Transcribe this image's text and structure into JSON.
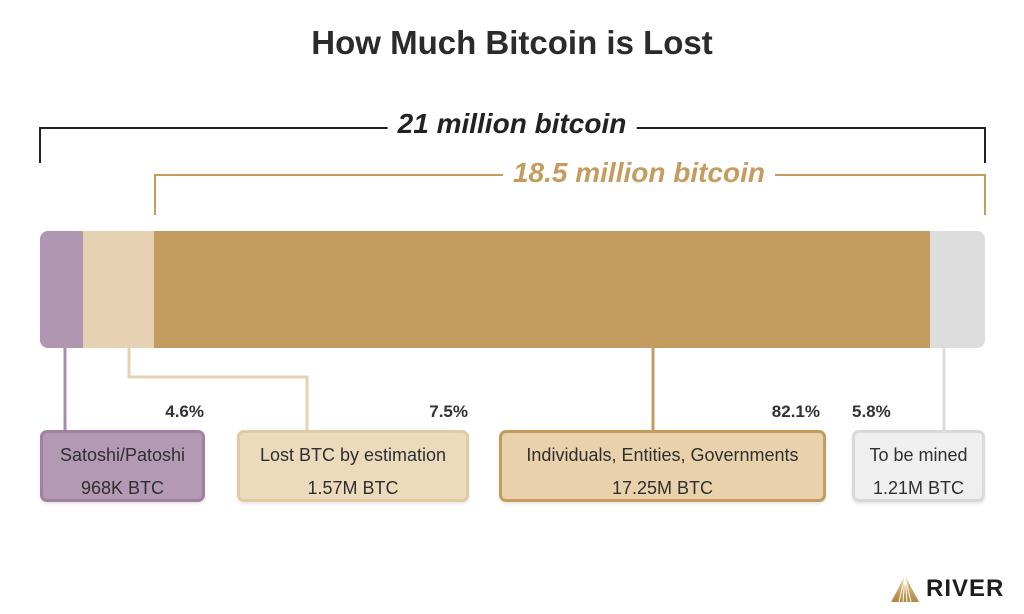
{
  "chart_data": {
    "type": "bar",
    "orientation": "horizontal-stacked",
    "title": "How Much Bitcoin is Lost",
    "brackets": [
      {
        "label": "21 million bitcoin",
        "color": "#222222"
      },
      {
        "label": "18.5 million bitcoin",
        "color": "#c49c60"
      }
    ],
    "series": [
      {
        "name": "Satoshi/Patoshi",
        "amount": "968K BTC",
        "percent_label": "4.6%",
        "value": 4.6,
        "color": "#b096b0"
      },
      {
        "name": "Lost BTC by estimation",
        "amount": "1.57M BTC",
        "percent_label": "7.5%",
        "value": 7.5,
        "color": "#e6d2b2"
      },
      {
        "name": "Individuals, Entities, Governments",
        "amount": "17.25M BTC",
        "percent_label": "82.1%",
        "value": 82.1,
        "color": "#c49c60"
      },
      {
        "name": "To be mined",
        "amount": "1.21M BTC",
        "percent_label": "5.8%",
        "value": 5.8,
        "color": "#dddddd"
      }
    ]
  },
  "brand": {
    "name": "RIVER"
  }
}
